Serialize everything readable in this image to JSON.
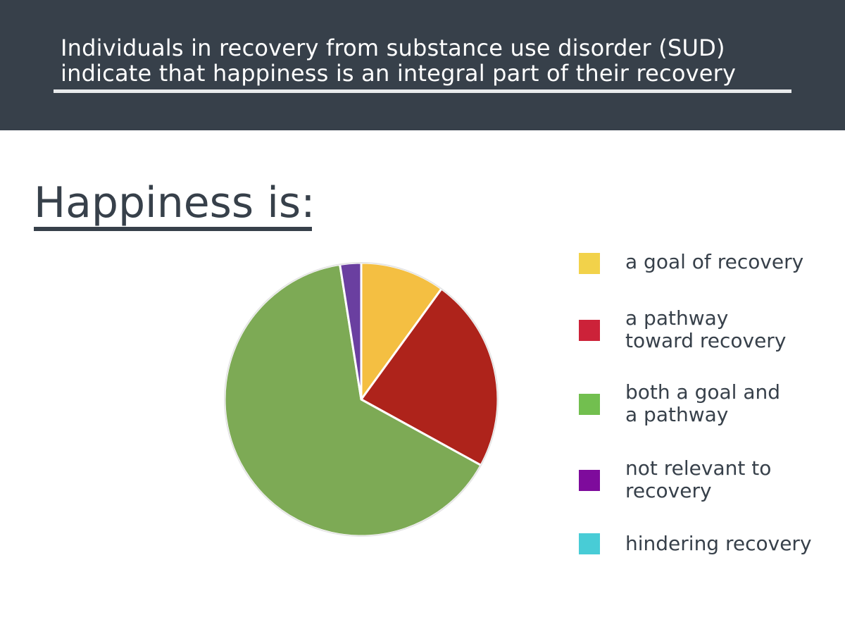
{
  "header": {
    "title_line1": "Individuals in recovery from substance use disorder (SUD)",
    "title_line2": "indicate that happiness is an integral part of their recovery"
  },
  "subtitle": "Happiness is:",
  "colors": {
    "header_bg": "#37404a",
    "text_dark": "#37404a"
  },
  "chart_data": {
    "type": "pie",
    "start": "12 o'clock",
    "direction": "clockwise",
    "slices": [
      {
        "label": "a goal of recovery",
        "value": 10,
        "color": "#f4bf42",
        "legend_color": "#f2d24a"
      },
      {
        "label": "a pathway toward recovery",
        "value": 23,
        "color": "#ae231b",
        "legend_color": "#cc2239"
      },
      {
        "label": "both a goal and a pathway",
        "value": 64.5,
        "color": "#7daa55",
        "legend_color": "#72bf4f"
      },
      {
        "label": "not relevant to recovery",
        "value": 2.5,
        "color": "#6a3fa0",
        "legend_color": "#7e0b9c"
      },
      {
        "label": "hindering recovery",
        "value": 0,
        "color": "#4fd0d8",
        "legend_color": "#48ccd6"
      }
    ]
  },
  "legend": {
    "items": [
      {
        "label": "a goal of recovery"
      },
      {
        "label": "a pathway\ntoward recovery"
      },
      {
        "label": "both a goal and\na pathway"
      },
      {
        "label": "not relevant to\nrecovery"
      },
      {
        "label": "hindering recovery"
      }
    ]
  }
}
